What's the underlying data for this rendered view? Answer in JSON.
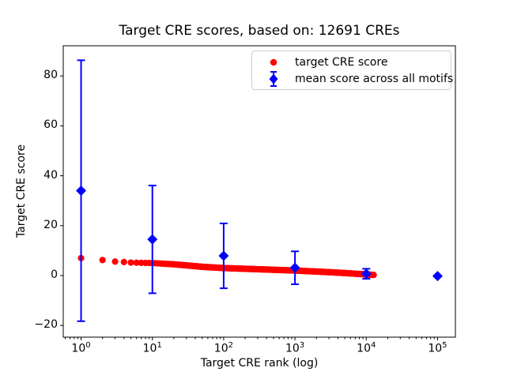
{
  "title": "Target CRE scores, based on: 12691 CREs",
  "axis": {
    "xlabel": "Target CRE rank (log)",
    "ylabel": "Target CRE score"
  },
  "legend": {
    "items": [
      {
        "label": "target CRE score",
        "marker": "red-circle"
      },
      {
        "label": "mean score across all motifs",
        "marker": "blue-diamond-errorbar"
      }
    ]
  },
  "colors": {
    "target_series": "#ff0000",
    "mean_series": "#0000ff",
    "frame": "#000000",
    "legend_border": "#cccccc",
    "background": "#ffffff"
  },
  "chart_data": {
    "type": "scatter",
    "title": "Target CRE scores, based on: 12691 CREs",
    "xlabel": "Target CRE rank (log)",
    "ylabel": "Target CRE score",
    "x_scale": "log10",
    "xlim_log10": [
      -0.25,
      5.25
    ],
    "ylim": [
      -24.7,
      92.1
    ],
    "x_ticks": [
      {
        "base": "10",
        "exp": "0"
      },
      {
        "base": "10",
        "exp": "1"
      },
      {
        "base": "10",
        "exp": "2"
      },
      {
        "base": "10",
        "exp": "3"
      },
      {
        "base": "10",
        "exp": "4"
      },
      {
        "base": "10",
        "exp": "5"
      }
    ],
    "y_ticks": [
      -20,
      0,
      20,
      40,
      60,
      80
    ],
    "grid": false,
    "legend_position": "upper right",
    "n_cres": 12691,
    "series": [
      {
        "name": "target CRE score",
        "type": "scatter",
        "marker": "circle",
        "color": "#ff0000",
        "rank_min": 1,
        "rank_max": 12691,
        "anchors_rank_score": [
          [
            1,
            7.0
          ],
          [
            2,
            6.2
          ],
          [
            3,
            5.6
          ],
          [
            4,
            5.4
          ],
          [
            5,
            5.2
          ],
          [
            7,
            5.1
          ],
          [
            10,
            5.0
          ],
          [
            20,
            4.5
          ],
          [
            50,
            3.5
          ],
          [
            100,
            3.0
          ],
          [
            200,
            2.7
          ],
          [
            500,
            2.3
          ],
          [
            1000,
            2.0
          ],
          [
            2000,
            1.6
          ],
          [
            5000,
            1.0
          ],
          [
            10000,
            0.45
          ],
          [
            12691,
            0.25
          ]
        ]
      },
      {
        "name": "mean score across all motifs",
        "type": "errorbar",
        "marker": "diamond",
        "color": "#0000ff",
        "points": [
          {
            "rank": 1,
            "mean": 34.0,
            "err": 52.3
          },
          {
            "rank": 10,
            "mean": 14.5,
            "err": 21.6
          },
          {
            "rank": 100,
            "mean": 7.9,
            "err": 13.0
          },
          {
            "rank": 1000,
            "mean": 3.1,
            "err": 6.6
          },
          {
            "rank": 10000,
            "mean": 0.7,
            "err": 2.0
          },
          {
            "rank": 100000,
            "mean": -0.2,
            "err": 0.3
          }
        ]
      }
    ]
  }
}
